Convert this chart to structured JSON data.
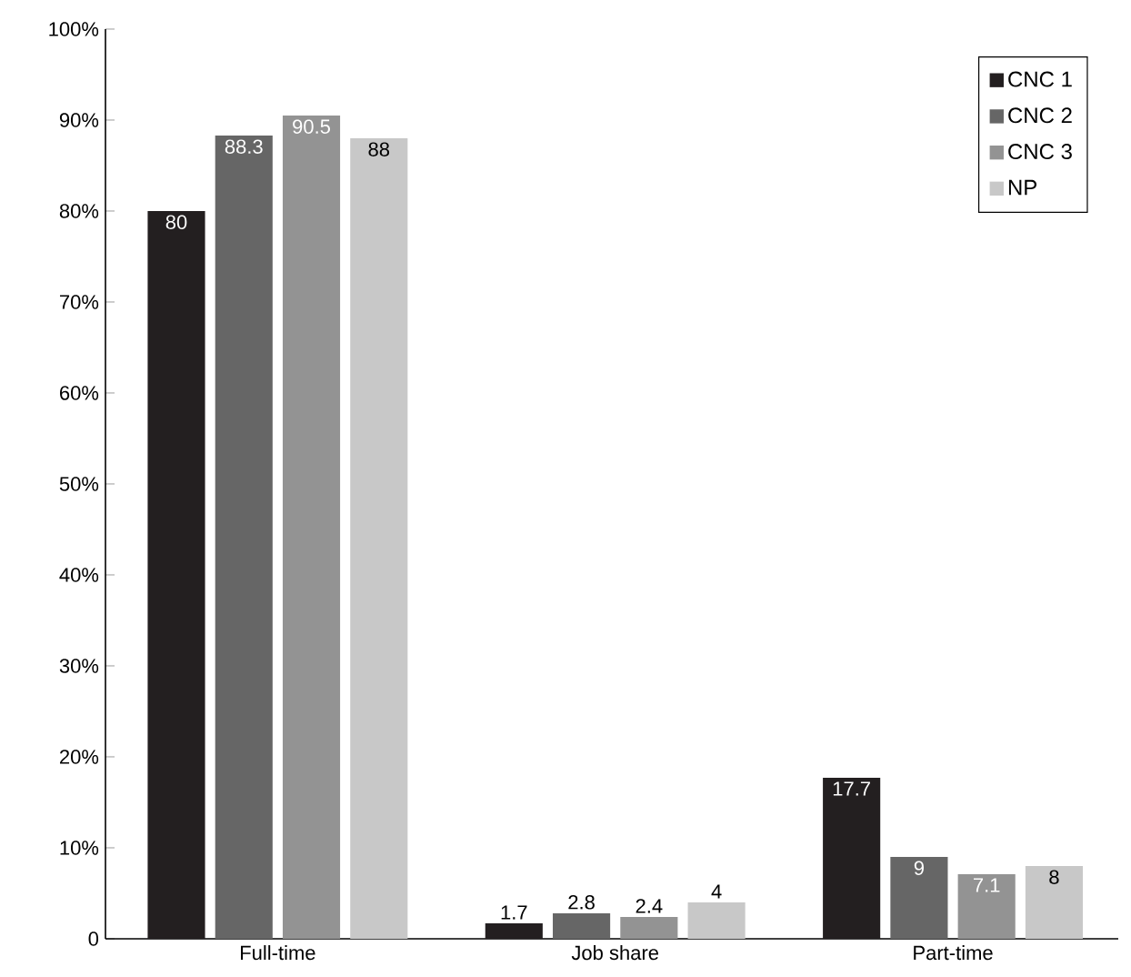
{
  "chart_data": {
    "type": "bar",
    "categories": [
      "Full-time",
      "Job share",
      "Part-time"
    ],
    "series": [
      {
        "name": "CNC 1",
        "color": "#231f20",
        "values": [
          80,
          1.7,
          17.7
        ]
      },
      {
        "name": "CNC 2",
        "color": "#666666",
        "values": [
          88.3,
          2.8,
          9
        ]
      },
      {
        "name": "CNC 3",
        "color": "#939393",
        "values": [
          90.5,
          2.4,
          7.1
        ]
      },
      {
        "name": "NP",
        "color": "#c8c8c8",
        "values": [
          88,
          4,
          8
        ]
      }
    ],
    "ylim": [
      0,
      100
    ],
    "yticks": [
      0,
      {
        "value": 10,
        "label": "10%"
      },
      {
        "value": 20,
        "label": "20%"
      },
      {
        "value": 30,
        "label": "30%"
      },
      {
        "value": 40,
        "label": "40%"
      },
      {
        "value": 50,
        "label": "50%"
      },
      {
        "value": 60,
        "label": "60%"
      },
      {
        "value": 70,
        "label": "70%"
      },
      {
        "value": 80,
        "label": "80%"
      },
      {
        "value": 90,
        "label": "90%"
      },
      {
        "value": 100,
        "label": "100%"
      }
    ],
    "data_labels": true,
    "legend": "top right",
    "grid": false
  }
}
